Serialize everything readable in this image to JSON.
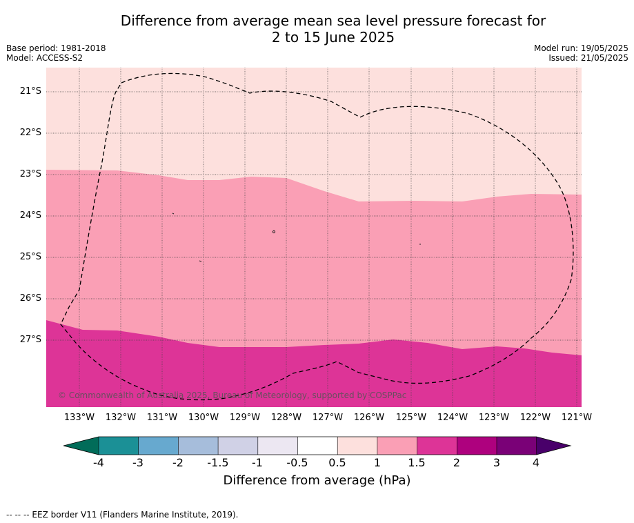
{
  "title": {
    "line1": "Difference from average mean sea level pressure forecast for",
    "line2": "2 to 15 June 2025"
  },
  "meta_left": {
    "base_period": "Base period: 1981-2018",
    "model": "Model: ACCESS-S2"
  },
  "meta_right": {
    "model_run": "Model run: 19/05/2025",
    "issued": "Issued: 21/05/2025"
  },
  "map": {
    "lat_labels": [
      "21°S",
      "22°S",
      "23°S",
      "24°S",
      "25°S",
      "26°S",
      "27°S"
    ],
    "lon_labels": [
      "133°W",
      "132°W",
      "131°W",
      "130°W",
      "129°W",
      "128°W",
      "127°W",
      "126°W",
      "125°W",
      "124°W",
      "123°W",
      "122°W",
      "121°W"
    ],
    "copyright": "© Commonwealth of Australia 2025, Bureau of Meteorology, supported by COSPPac",
    "regions": [
      {
        "category": "0.5 to 1",
        "color": "#fde0dd"
      },
      {
        "category": "1 to 1.5",
        "color": "#fa9fb5"
      },
      {
        "category": "1.5 to 2",
        "color": "#dd3497"
      }
    ],
    "eez_line": "dashed black"
  },
  "colorbar": {
    "ticks": [
      "-4",
      "-3",
      "-2",
      "-1.5",
      "-1",
      "-0.5",
      "0.5",
      "1",
      "1.5",
      "2",
      "3",
      "4"
    ],
    "colors": [
      "#1b9096",
      "#67a9cf",
      "#a6bddb",
      "#d0d1e6",
      "#ece7f2",
      "#ffffff",
      "#fde0dd",
      "#fa9fb5",
      "#dd3497",
      "#ae017e",
      "#7a0177"
    ],
    "under_color": "#016c59",
    "over_color": "#49006a",
    "label": "Difference from average (hPa)"
  },
  "footer": "--  --  -- EEZ border V11 (Flanders Marine Institute, 2019)."
}
